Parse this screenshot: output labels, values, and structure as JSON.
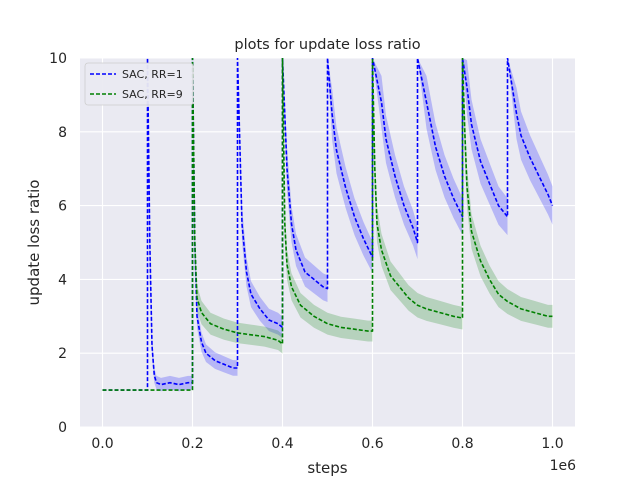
{
  "chart_data": {
    "type": "line",
    "title": "plots for update loss ratio",
    "xlabel": "steps",
    "ylabel": "update loss ratio",
    "x_offset_text": "1e6",
    "xlim": [
      -0.05,
      1.05
    ],
    "ylim": [
      0,
      10
    ],
    "x_ticks": [
      0.0,
      0.2,
      0.4,
      0.6,
      0.8,
      1.0
    ],
    "x_tick_labels": [
      "0.0",
      "0.2",
      "0.4",
      "0.6",
      "0.8",
      "1.0"
    ],
    "y_ticks": [
      0,
      2,
      4,
      6,
      8,
      10
    ],
    "y_tick_labels": [
      "0",
      "2",
      "4",
      "6",
      "8",
      "10"
    ],
    "grid": true,
    "background": "#eaeaf2",
    "legend_position": "top-left",
    "series": [
      {
        "name": "SAC, RR=1",
        "color": "#0000ff",
        "style": "dashed",
        "band": true,
        "segments": [
          {
            "x": [
              0.0,
              0.1
            ],
            "y": [
              1.0,
              1.0
            ]
          },
          {
            "x": [
              0.1,
              0.105,
              0.11,
              0.115,
              0.12,
              0.13,
              0.15,
              0.17,
              0.19,
              0.2
            ],
            "y": [
              10.0,
              5.0,
              2.2,
              1.4,
              1.2,
              1.15,
              1.2,
              1.15,
              1.2,
              1.2
            ]
          },
          {
            "x": [
              0.2,
              0.205,
              0.21,
              0.22,
              0.23,
              0.25,
              0.27,
              0.29,
              0.3
            ],
            "y": [
              10.0,
              5.0,
              3.0,
              2.3,
              2.0,
              1.8,
              1.7,
              1.6,
              1.6
            ]
          },
          {
            "x": [
              0.3,
              0.31,
              0.32,
              0.33,
              0.35,
              0.37,
              0.39,
              0.4
            ],
            "y": [
              10.0,
              5.5,
              4.2,
              3.6,
              3.2,
              2.9,
              2.8,
              2.7
            ]
          },
          {
            "x": [
              0.4,
              0.41,
              0.42,
              0.43,
              0.45,
              0.47,
              0.49,
              0.5
            ],
            "y": [
              10.0,
              7.0,
              5.5,
              4.8,
              4.2,
              4.0,
              3.8,
              3.75
            ]
          },
          {
            "x": [
              0.5,
              0.51,
              0.52,
              0.54,
              0.56,
              0.58,
              0.6
            ],
            "y": [
              10.0,
              8.5,
              7.5,
              6.5,
              5.7,
              5.1,
              4.6
            ]
          },
          {
            "x": [
              0.6,
              0.62,
              0.63,
              0.65,
              0.67,
              0.69,
              0.7
            ],
            "y": [
              10.0,
              8.8,
              7.8,
              6.8,
              6.0,
              5.4,
              5.0
            ]
          },
          {
            "x": [
              0.7,
              0.72,
              0.74,
              0.76,
              0.78,
              0.8
            ],
            "y": [
              10.0,
              8.8,
              7.6,
              6.8,
              6.2,
              5.7
            ]
          },
          {
            "x": [
              0.8,
              0.81,
              0.82,
              0.84,
              0.86,
              0.88,
              0.9
            ],
            "y": [
              10.0,
              9.2,
              8.2,
              7.2,
              6.6,
              6.0,
              5.7
            ]
          },
          {
            "x": [
              0.9,
              0.92,
              0.93,
              0.95,
              0.97,
              0.99,
              1.0
            ],
            "y": [
              10.0,
              8.5,
              7.9,
              7.3,
              6.8,
              6.3,
              6.0
            ]
          }
        ]
      },
      {
        "name": "SAC, RR=9",
        "color": "#008000",
        "style": "dashed",
        "band": true,
        "segments": [
          {
            "x": [
              0.0,
              0.1,
              0.2
            ],
            "y": [
              1.0,
              1.0,
              1.0
            ]
          },
          {
            "x": [
              0.2,
              0.205,
              0.21,
              0.22,
              0.24,
              0.27,
              0.3,
              0.33,
              0.36,
              0.39,
              0.4
            ],
            "y": [
              10.0,
              5.0,
              3.5,
              3.1,
              2.8,
              2.65,
              2.55,
              2.5,
              2.45,
              2.35,
              2.25
            ]
          },
          {
            "x": [
              0.4,
              0.405,
              0.41,
              0.42,
              0.44,
              0.47,
              0.5,
              0.53,
              0.56,
              0.59,
              0.6
            ],
            "y": [
              10.0,
              5.5,
              4.4,
              3.8,
              3.3,
              3.0,
              2.8,
              2.7,
              2.65,
              2.6,
              2.6
            ]
          },
          {
            "x": [
              0.6,
              0.605,
              0.61,
              0.62,
              0.64,
              0.66,
              0.68,
              0.7,
              0.72,
              0.75,
              0.78,
              0.8
            ],
            "y": [
              10.0,
              7.0,
              5.5,
              4.8,
              4.1,
              3.8,
              3.5,
              3.3,
              3.2,
              3.1,
              3.0,
              2.95
            ]
          },
          {
            "x": [
              0.8,
              0.805,
              0.81,
              0.82,
              0.84,
              0.86,
              0.88,
              0.9,
              0.93,
              0.96,
              0.99,
              1.0
            ],
            "y": [
              10.0,
              8.0,
              6.5,
              5.3,
              4.5,
              4.0,
              3.6,
              3.4,
              3.2,
              3.1,
              3.0,
              3.0
            ]
          }
        ]
      }
    ]
  }
}
